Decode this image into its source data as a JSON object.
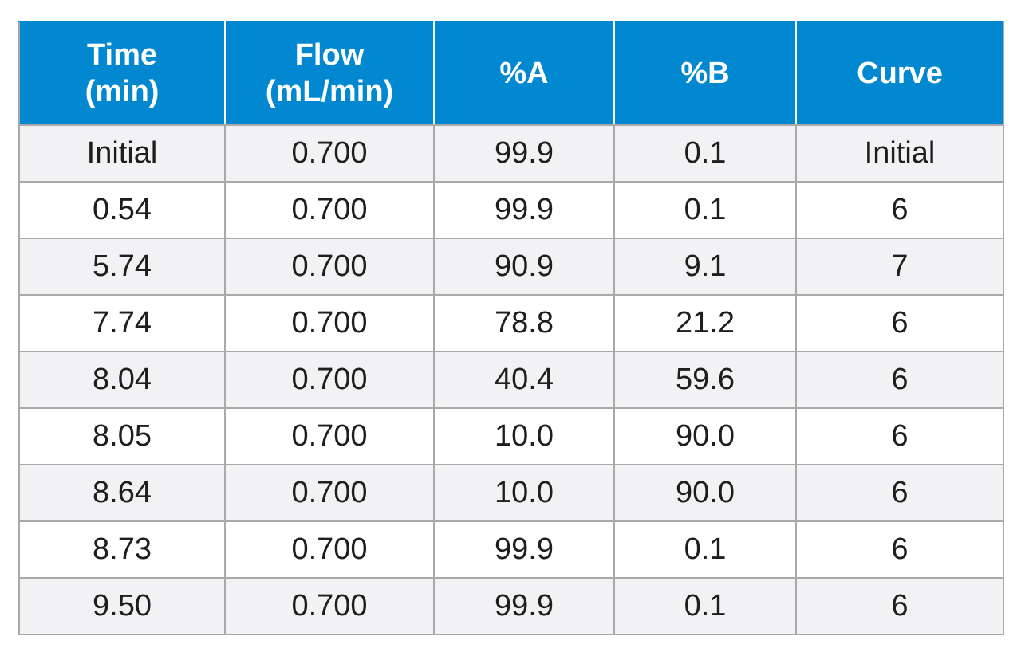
{
  "table": {
    "headers": [
      [
        "Time",
        "(min)"
      ],
      [
        "Flow",
        "(mL/min)"
      ],
      [
        "%A"
      ],
      [
        "%B"
      ],
      [
        "Curve"
      ]
    ],
    "rows": [
      [
        "Initial",
        "0.700",
        "99.9",
        "0.1",
        "Initial"
      ],
      [
        "0.54",
        "0.700",
        "99.9",
        "0.1",
        "6"
      ],
      [
        "5.74",
        "0.700",
        "90.9",
        "9.1",
        "7"
      ],
      [
        "7.74",
        "0.700",
        "78.8",
        "21.2",
        "6"
      ],
      [
        "8.04",
        "0.700",
        "40.4",
        "59.6",
        "6"
      ],
      [
        "8.05",
        "0.700",
        "10.0",
        "90.0",
        "6"
      ],
      [
        "8.64",
        "0.700",
        "10.0",
        "90.0",
        "6"
      ],
      [
        "8.73",
        "0.700",
        "99.9",
        "0.1",
        "6"
      ],
      [
        "9.50",
        "0.700",
        "99.9",
        "0.1",
        "6"
      ]
    ]
  },
  "colors": {
    "header_bg": "#0288d1",
    "header_text": "#ffffff",
    "row_alt_bg": "#f2f2f4",
    "border": "#a9a9a9"
  }
}
